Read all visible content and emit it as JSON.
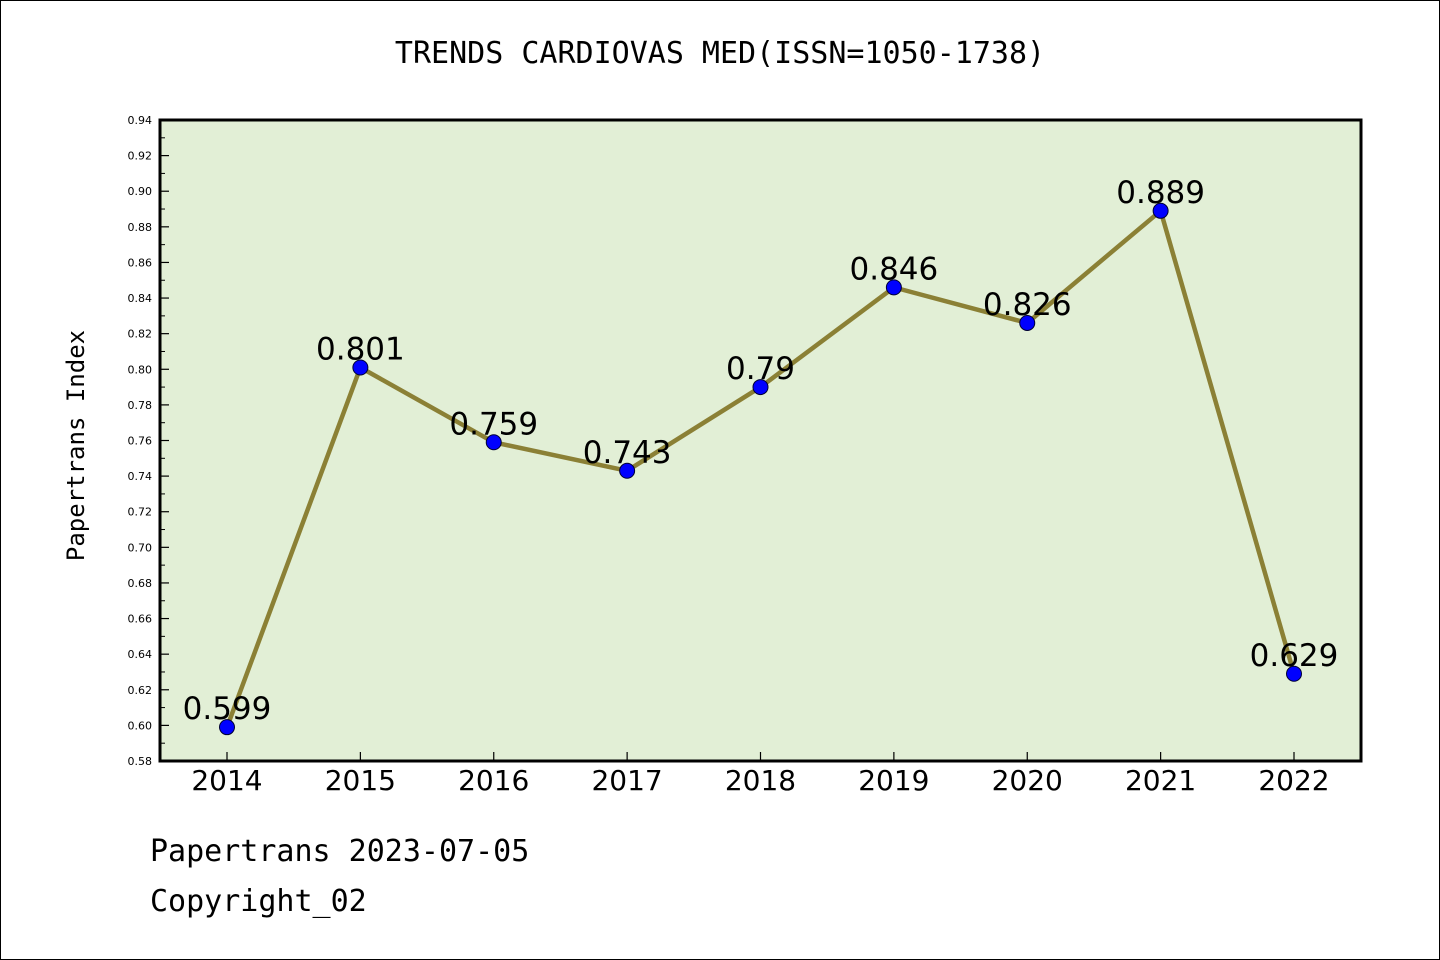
{
  "chart_data": {
    "type": "line",
    "title": "TRENDS CARDIOVAS MED(ISSN=1050-1738)",
    "xlabel": "",
    "ylabel": "Papertrans Index",
    "categories": [
      "2014",
      "2015",
      "2016",
      "2017",
      "2018",
      "2019",
      "2020",
      "2021",
      "2022"
    ],
    "values": [
      0.599,
      0.801,
      0.759,
      0.743,
      0.79,
      0.846,
      0.826,
      0.889,
      0.629
    ],
    "data_labels": [
      "0.599",
      "0.801",
      "0.759",
      "0.743",
      "0.79",
      "0.846",
      "0.826",
      "0.889",
      "0.629"
    ],
    "ylim": [
      0.58,
      0.94
    ],
    "yticks": [
      0.58,
      0.6,
      0.62,
      0.64,
      0.66,
      0.68,
      0.7,
      0.72,
      0.74,
      0.76,
      0.78,
      0.8,
      0.82,
      0.84,
      0.86,
      0.88,
      0.9,
      0.92,
      0.94
    ],
    "ytick_labels": [
      "0.58",
      "0.60",
      "0.62",
      "0.64",
      "0.66",
      "0.68",
      "0.70",
      "0.72",
      "0.74",
      "0.76",
      "0.78",
      "0.80",
      "0.82",
      "0.84",
      "0.86",
      "0.88",
      "0.90",
      "0.92",
      "0.94"
    ],
    "grid": false,
    "colors": {
      "plot_background": "#e2efd6",
      "line": "#8b8035",
      "marker": "#0000ff",
      "axes": "#000000"
    }
  },
  "footer": {
    "date_text": "Papertrans 2023-07-05",
    "copyright_text": "Copyright_02"
  }
}
